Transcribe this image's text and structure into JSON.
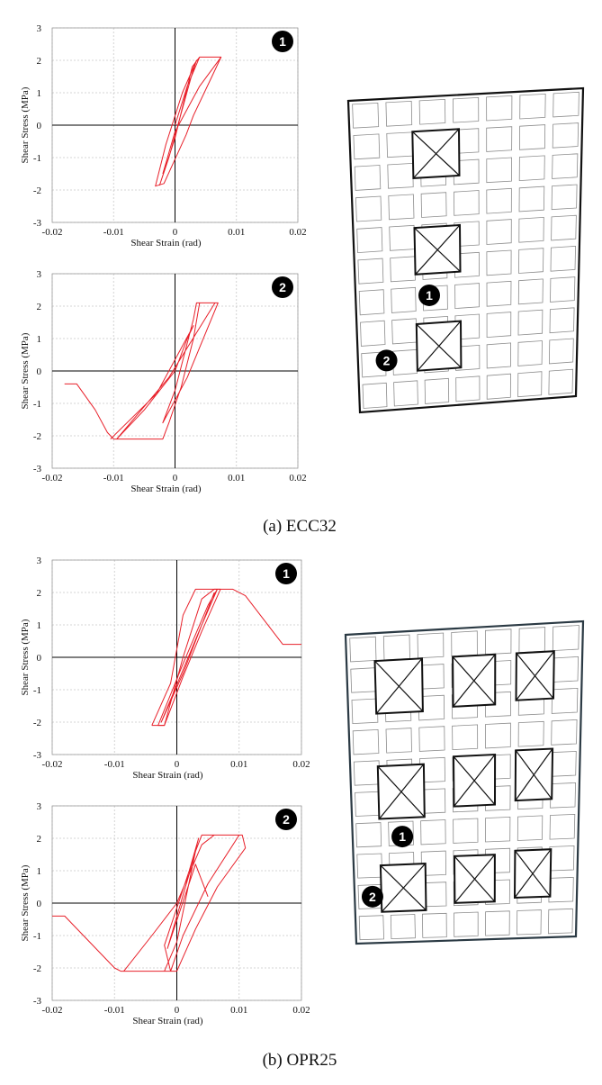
{
  "captions": [
    "(a) ECC32",
    "(b) OPR25"
  ],
  "badges": [
    "1",
    "2"
  ],
  "colors": {
    "curve": "#e8202a",
    "axis": "#000000",
    "grid": "#c8c8c8",
    "badge": "#000000"
  },
  "chart_data": [
    {
      "type": "line",
      "panel": "a",
      "location": "1",
      "xlabel": "Shear Strain (rad)",
      "ylabel": "Shear Stress (MPa)",
      "xlim": [
        -0.02,
        0.02
      ],
      "ylim": [
        -3,
        3
      ],
      "xticks": [
        -0.02,
        -0.01,
        0,
        0.01,
        0.02
      ],
      "yticks": [
        -3,
        -2,
        -1,
        0,
        1,
        2,
        3
      ],
      "grid": true,
      "series": [
        {
          "values": [
            [
              0,
              0
            ],
            [
              0.002,
              1.2
            ],
            [
              0.004,
              2.1
            ],
            [
              0.0075,
              2.1
            ],
            [
              0.006,
              1.5
            ],
            [
              0.003,
              0.3
            ],
            [
              0.0018,
              -0.3
            ],
            [
              -0.0018,
              -1.8
            ],
            [
              -0.0032,
              -1.88
            ],
            [
              -0.0015,
              -0.6
            ],
            [
              0.0012,
              1.0
            ],
            [
              0.0035,
              2.0
            ],
            [
              0.0028,
              1.6
            ],
            [
              -0.001,
              -1.0
            ],
            [
              -0.0025,
              -1.85
            ],
            [
              0,
              -0.4
            ],
            [
              0.0028,
              1.8
            ],
            [
              0.004,
              2.1
            ],
            [
              0.0075,
              2.1
            ],
            [
              0.004,
              1.2
            ],
            [
              0,
              -0.2
            ],
            [
              -0.002,
              -1.5
            ]
          ]
        }
      ]
    },
    {
      "type": "line",
      "panel": "a",
      "location": "2",
      "xlabel": "Shear Strain (rad)",
      "ylabel": "Shear Stress (MPa)",
      "xlim": [
        -0.02,
        0.02
      ],
      "ylim": [
        -3,
        3
      ],
      "xticks": [
        -0.02,
        -0.01,
        0,
        0.01,
        0.02
      ],
      "yticks": [
        -3,
        -2,
        -1,
        0,
        1,
        2,
        3
      ],
      "grid": true,
      "series": [
        {
          "values": [
            [
              -0.018,
              -0.4
            ],
            [
              -0.016,
              -0.4
            ],
            [
              -0.013,
              -1.2
            ],
            [
              -0.011,
              -1.9
            ],
            [
              -0.01,
              -2.1
            ],
            [
              -0.002,
              -2.1
            ],
            [
              -0.001,
              -1.6
            ],
            [
              0.001,
              -0.5
            ],
            [
              0.003,
              1.0
            ],
            [
              0.004,
              2.1
            ],
            [
              0.007,
              2.1
            ],
            [
              0.002,
              -0.2
            ],
            [
              -0.002,
              -1.6
            ],
            [
              0,
              -0.6
            ],
            [
              0.003,
              1.6
            ],
            [
              0.0035,
              2.1
            ],
            [
              0.0065,
              2.1
            ],
            [
              -0.001,
              -0.2
            ],
            [
              -0.0095,
              -2.1
            ],
            [
              -0.005,
              -1.2
            ],
            [
              0,
              0
            ],
            [
              0.002,
              1.0
            ],
            [
              0.003,
              1.4
            ],
            [
              -0.003,
              -0.7
            ],
            [
              -0.0105,
              -2.1
            ]
          ]
        }
      ]
    },
    {
      "type": "line",
      "panel": "b",
      "location": "1",
      "xlabel": "Shear Strain (rad)",
      "ylabel": "Shear Stress (MPa)",
      "xlim": [
        -0.02,
        0.02
      ],
      "ylim": [
        -3,
        3
      ],
      "xticks": [
        -0.02,
        -0.01,
        0,
        0.01,
        0.02
      ],
      "yticks": [
        -3,
        -2,
        -1,
        0,
        1,
        2,
        3
      ],
      "grid": true,
      "series": [
        {
          "values": [
            [
              -0.004,
              -2.1
            ],
            [
              -0.002,
              -2.1
            ],
            [
              0.001,
              0.0
            ],
            [
              0.004,
              1.8
            ],
            [
              0.006,
              2.1
            ],
            [
              0.009,
              2.1
            ],
            [
              0.011,
              1.9
            ],
            [
              0.017,
              0.4
            ],
            [
              0.02,
              0.4
            ]
          ]
        },
        {
          "values": [
            [
              -0.004,
              -2.1
            ],
            [
              -0.001,
              -0.8
            ],
            [
              0.001,
              1.3
            ],
            [
              0.003,
              2.1
            ],
            [
              0.007,
              2.1
            ],
            [
              0.004,
              0.8
            ],
            [
              0.001,
              -0.6
            ],
            [
              -0.002,
              -2.1
            ],
            [
              -0.003,
              -2.1
            ],
            [
              0.001,
              -0.2
            ],
            [
              0.005,
              1.6
            ],
            [
              0.0065,
              2.1
            ],
            [
              0.004,
              1.0
            ],
            [
              -0.0025,
              -2.0
            ],
            [
              0.001,
              -0.5
            ],
            [
              0.006,
              2.0
            ]
          ]
        }
      ]
    },
    {
      "type": "line",
      "panel": "b",
      "location": "2",
      "xlabel": "Shear Strain (rad)",
      "ylabel": "Shear Stress (MPa)",
      "xlim": [
        -0.02,
        0.02
      ],
      "ylim": [
        -3,
        3
      ],
      "xticks": [
        -0.02,
        -0.01,
        0,
        0.01,
        0.02
      ],
      "yticks": [
        -3,
        -2,
        -1,
        0,
        1,
        2,
        3
      ],
      "grid": true,
      "series": [
        {
          "values": [
            [
              -0.02,
              -0.4
            ],
            [
              -0.018,
              -0.4
            ],
            [
              -0.01,
              -2.0
            ],
            [
              -0.009,
              -2.1
            ],
            [
              -0.008,
              -2.1
            ],
            [
              -0.002,
              -2.1
            ],
            [
              0,
              -1.2
            ],
            [
              0.003,
              1.6
            ],
            [
              0.004,
              2.1
            ],
            [
              0.0105,
              2.1
            ],
            [
              0.011,
              1.7
            ],
            [
              0.0065,
              0.5
            ],
            [
              0.003,
              -0.8
            ],
            [
              0,
              -2.1
            ],
            [
              -0.0085,
              -2.1
            ],
            [
              -0.004,
              -1.0
            ],
            [
              0,
              0
            ],
            [
              0.004,
              1.8
            ],
            [
              0.006,
              2.1
            ],
            [
              0.01,
              2.1
            ],
            [
              0.005,
              0.6
            ],
            [
              0.001,
              -1.0
            ],
            [
              -0.001,
              -2.1
            ],
            [
              -0.002,
              -1.3
            ],
            [
              0.002,
              1.0
            ],
            [
              0.0035,
              2.0
            ],
            [
              0.002,
              0.9
            ],
            [
              -0.0015,
              -1.4
            ],
            [
              0.003,
              1.2
            ],
            [
              0.005,
              0.2
            ]
          ]
        }
      ]
    }
  ]
}
